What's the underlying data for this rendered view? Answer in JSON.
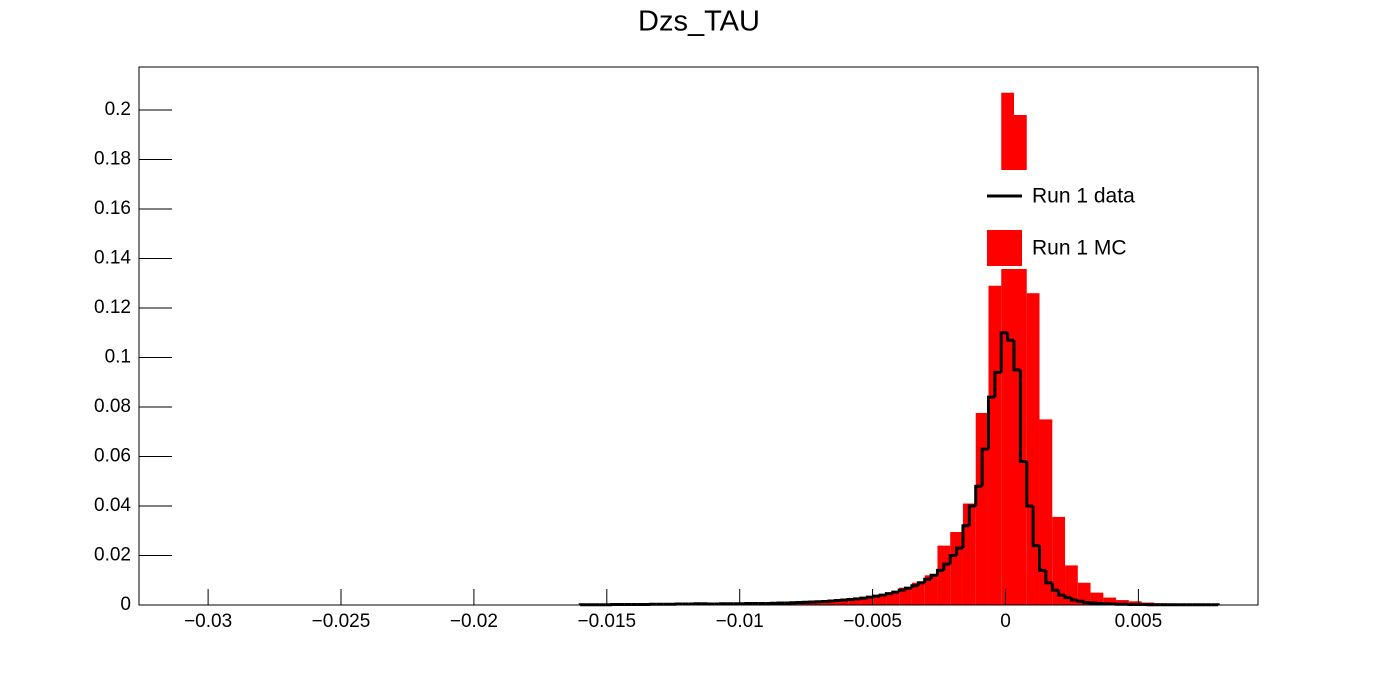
{
  "chart_data": {
    "type": "histogram",
    "title": "Dzs_TAU",
    "xlim": [
      -0.0326,
      0.0095
    ],
    "ylim": [
      0,
      0.2174
    ],
    "xticks": [
      {
        "value": -0.03,
        "label": "−0.03"
      },
      {
        "value": -0.025,
        "label": "−0.025"
      },
      {
        "value": -0.02,
        "label": "−0.02"
      },
      {
        "value": -0.015,
        "label": "−0.015"
      },
      {
        "value": -0.01,
        "label": "−0.01"
      },
      {
        "value": -0.005,
        "label": "−0.005"
      },
      0,
      0.005
    ],
    "yticks": [
      0,
      0.02,
      0.04,
      0.06,
      0.08,
      0.1,
      0.12,
      0.14,
      0.16,
      0.18,
      0.2
    ],
    "legend": "top-right",
    "series": [
      {
        "name": "Run 1 data",
        "color": "#000000",
        "style": "step",
        "bins": [
          -0.016,
          -0.01576,
          -0.01552,
          -0.01528,
          -0.01504,
          -0.0148,
          -0.01456,
          -0.01432,
          -0.01408,
          -0.01384,
          -0.0136,
          -0.01336,
          -0.01312,
          -0.01288,
          -0.01264,
          -0.0124,
          -0.01216,
          -0.01192,
          -0.01168,
          -0.01144,
          -0.0112,
          -0.01096,
          -0.01072,
          -0.01048,
          -0.01024,
          -0.01,
          -0.00976,
          -0.00952,
          -0.00928,
          -0.00904,
          -0.0088,
          -0.00856,
          -0.00832,
          -0.00808,
          -0.00784,
          -0.0076,
          -0.00736,
          -0.00712,
          -0.00688,
          -0.00664,
          -0.0064,
          -0.00616,
          -0.00592,
          -0.00568,
          -0.00544,
          -0.0052,
          -0.00496,
          -0.00472,
          -0.00448,
          -0.00424,
          -0.004,
          -0.00376,
          -0.00352,
          -0.00328,
          -0.00304,
          -0.0028,
          -0.00256,
          -0.00232,
          -0.00208,
          -0.00184,
          -0.0016,
          -0.00136,
          -0.00112,
          -0.00088,
          -0.00064,
          -0.0004,
          -0.00016,
          8e-05,
          0.00032,
          0.00056,
          0.0008,
          0.00104,
          0.00128,
          0.00152,
          0.00176,
          0.002,
          0.00224,
          0.00248,
          0.00272,
          0.00296,
          0.0032,
          0.00344,
          0.00368,
          0.00392,
          0.00416,
          0.0044,
          0.00464,
          0.00488,
          0.00512,
          0.00536,
          0.0056,
          0.00584,
          0.00608,
          0.00632,
          0.00656,
          0.0068,
          0.00704,
          0.00728,
          0.00752,
          0.00776,
          0.008
        ],
        "values": [
          0.0001,
          0.0001,
          0.0001,
          0.0001,
          0.0001,
          0.0002,
          0.0002,
          0.0002,
          0.0002,
          0.0002,
          0.0002,
          0.0003,
          0.0003,
          0.0003,
          0.0003,
          0.0004,
          0.0004,
          0.0004,
          0.0005,
          0.0005,
          0.0004,
          0.0004,
          0.0005,
          0.0005,
          0.0005,
          0.0005,
          0.0006,
          0.0006,
          0.0006,
          0.0006,
          0.0007,
          0.0008,
          0.0008,
          0.0009,
          0.001,
          0.0011,
          0.0012,
          0.0013,
          0.0014,
          0.0016,
          0.0018,
          0.002,
          0.0022,
          0.0025,
          0.0028,
          0.0032,
          0.0036,
          0.004,
          0.0046,
          0.0052,
          0.006,
          0.0068,
          0.0078,
          0.009,
          0.0104,
          0.012,
          0.014,
          0.0165,
          0.02,
          0.023,
          0.032,
          0.04,
          0.048,
          0.063,
          0.084,
          0.094,
          0.11,
          0.107,
          0.095,
          0.058,
          0.04,
          0.024,
          0.014,
          0.009,
          0.006,
          0.004,
          0.003,
          0.002,
          0.0015,
          0.001,
          0.0008,
          0.0006,
          0.0005,
          0.0004,
          0.0003,
          0.0003,
          0.0002,
          0.0002,
          0.0002,
          0.0001,
          0.0001,
          0.0001,
          0.0001,
          0.0001,
          0.0001,
          0.0001,
          0.0001,
          0.0001,
          0.0001,
          0.0001
        ]
      },
      {
        "name": "Run 1 MC",
        "color": "#ff0000",
        "style": "fill",
        "bins": [
          -0.016,
          -0.01552,
          -0.01504,
          -0.01456,
          -0.01408,
          -0.0136,
          -0.01312,
          -0.01264,
          -0.01216,
          -0.01168,
          -0.0112,
          -0.01072,
          -0.01024,
          -0.00976,
          -0.00928,
          -0.0088,
          -0.00832,
          -0.00784,
          -0.00736,
          -0.00688,
          -0.0064,
          -0.00592,
          -0.00544,
          -0.00496,
          -0.00448,
          -0.004,
          -0.00352,
          -0.00304,
          -0.00256,
          -0.00208,
          -0.0016,
          -0.00112,
          -0.00064,
          -0.00016,
          0.00032,
          0.0008,
          0.00128,
          0.00176,
          0.00224,
          0.00272,
          0.0032,
          0.00368,
          0.00416,
          0.00464,
          0.00512,
          0.0056,
          0.00608,
          0.00656,
          0.00704,
          0.00752,
          0.008
        ],
        "values": [
          0,
          0,
          0,
          0,
          0,
          0,
          0,
          0,
          0.0001,
          0.0001,
          0.0002,
          0.0002,
          0.0003,
          0.0003,
          0.0005,
          0.0006,
          0.0008,
          0.001,
          0.0013,
          0.0016,
          0.002,
          0.0025,
          0.003,
          0.004,
          0.005,
          0.007,
          0.009,
          0.012,
          0.024,
          0.0295,
          0.041,
          0.0776,
          0.129,
          0.207,
          0.198,
          0.126,
          0.075,
          0.0356,
          0.016,
          0.009,
          0.005,
          0.003,
          0.002,
          0.0015,
          0.001,
          0.0007,
          0.0005,
          0.0003,
          0.0002,
          0.0001
        ]
      }
    ]
  }
}
